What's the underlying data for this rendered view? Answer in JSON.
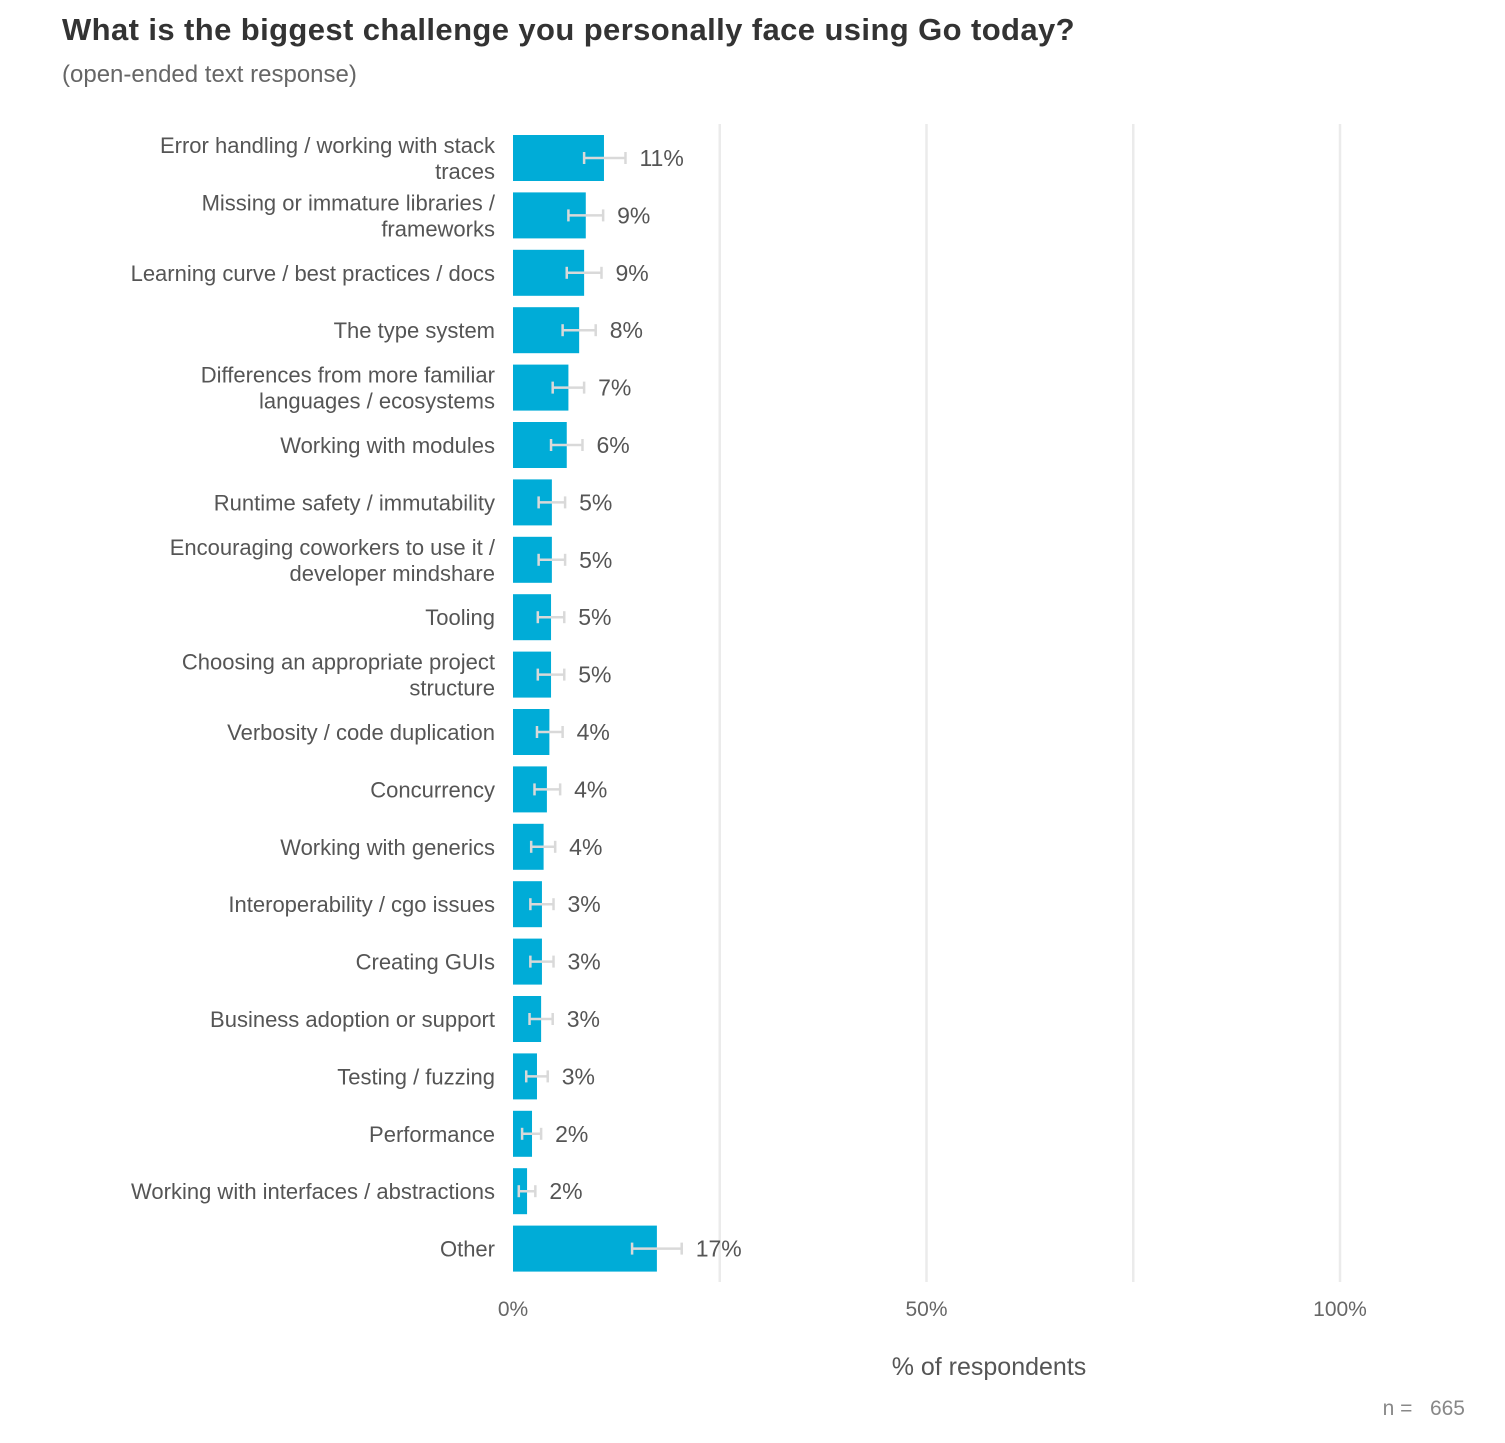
{
  "chart_data": {
    "type": "bar",
    "orientation": "horizontal",
    "title": "What is the biggest challenge you personally face using Go today?",
    "subtitle": "(open-ended text response)",
    "xlabel": "% of respondents",
    "ylabel": "",
    "xlim": [
      0,
      1.1
    ],
    "xticks": [
      0,
      0.5,
      1.0
    ],
    "xtick_labels": [
      "0%",
      "50%",
      "100%"
    ],
    "grid": "vertical",
    "bar_color": "#00ACD7",
    "errorbar_color": "#D9D9D9",
    "sample_size_label": "n =   665",
    "categories": [
      [
        "Error handling / working with stack",
        "traces"
      ],
      [
        "Missing or immature libraries /",
        "frameworks"
      ],
      [
        "Learning curve / best practices / docs"
      ],
      [
        "The type system"
      ],
      [
        "Differences from more familiar",
        "languages / ecosystems"
      ],
      [
        "Working with modules"
      ],
      [
        "Runtime safety / immutability"
      ],
      [
        "Encouraging coworkers to use it /",
        "developer mindshare"
      ],
      [
        "Tooling"
      ],
      [
        "Choosing an appropriate project",
        "structure"
      ],
      [
        "Verbosity / code duplication"
      ],
      [
        "Concurrency"
      ],
      [
        "Working with generics"
      ],
      [
        "Interoperability / cgo issues"
      ],
      [
        "Creating GUIs"
      ],
      [
        "Business adoption or support"
      ],
      [
        "Testing / fuzzing"
      ],
      [
        "Performance"
      ],
      [
        "Working with interfaces / abstractions"
      ],
      [
        "Other"
      ]
    ],
    "values": [
      0.11,
      0.088,
      0.086,
      0.08,
      0.067,
      0.065,
      0.047,
      0.047,
      0.046,
      0.046,
      0.044,
      0.041,
      0.037,
      0.035,
      0.035,
      0.034,
      0.029,
      0.023,
      0.017,
      0.174
    ],
    "value_labels": [
      "11%",
      "9%",
      "9%",
      "8%",
      "7%",
      "6%",
      "5%",
      "5%",
      "5%",
      "5%",
      "4%",
      "4%",
      "4%",
      "3%",
      "3%",
      "3%",
      "3%",
      "2%",
      "2%",
      "17%"
    ],
    "ci_low": [
      0.086,
      0.067,
      0.065,
      0.06,
      0.048,
      0.046,
      0.031,
      0.031,
      0.03,
      0.03,
      0.029,
      0.026,
      0.022,
      0.021,
      0.021,
      0.02,
      0.016,
      0.011,
      0.007,
      0.144
    ],
    "ci_high": [
      0.136,
      0.109,
      0.107,
      0.1,
      0.086,
      0.084,
      0.063,
      0.063,
      0.062,
      0.062,
      0.06,
      0.057,
      0.051,
      0.049,
      0.049,
      0.048,
      0.042,
      0.034,
      0.027,
      0.204
    ]
  }
}
